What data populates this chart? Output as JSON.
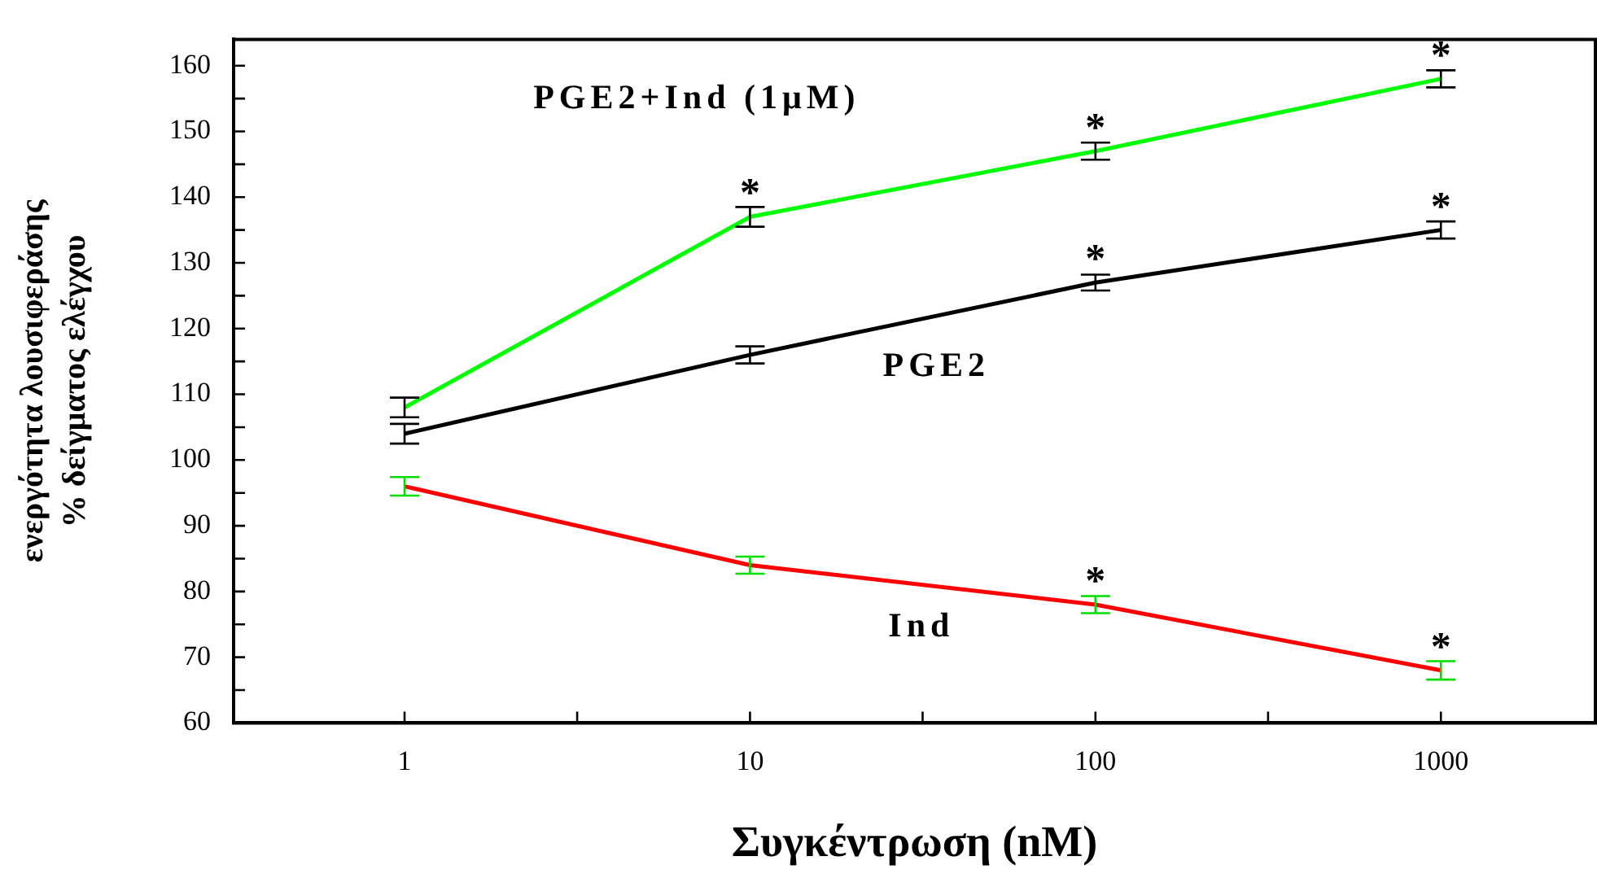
{
  "chart_data": {
    "type": "line",
    "xlabel": "Συγκέντρωση (nM)",
    "ylabel": "ενεργότητα λουσιφεράσης\n% δείγματος ελέγχου",
    "x": [
      1,
      10,
      100,
      1000
    ],
    "log": "x",
    "xlim": [
      0.32,
      2800
    ],
    "xticks": [
      1,
      {
        "value": 3.16,
        "label": null
      },
      10,
      {
        "value": 31.6,
        "label": null
      },
      100,
      {
        "value": 316,
        "label": null
      },
      1000
    ],
    "ylim": [
      60,
      164
    ],
    "yticks": [
      60,
      {
        "value": 65,
        "label": null
      },
      70,
      {
        "value": 75,
        "label": null
      },
      80,
      {
        "value": 85,
        "label": null
      },
      90,
      {
        "value": 95,
        "label": null
      },
      100,
      {
        "value": 105,
        "label": null
      },
      110,
      {
        "value": 115,
        "label": null
      },
      120,
      {
        "value": 125,
        "label": null
      },
      130,
      {
        "value": 135,
        "label": null
      },
      140,
      {
        "value": 145,
        "label": null
      },
      150,
      {
        "value": 155,
        "label": null
      },
      160
    ],
    "grid": false,
    "legend": false,
    "line_style": "solid",
    "series": [
      {
        "name": "PGE2+Ind (1μM)",
        "color": "#00ff00",
        "values": [
          108,
          137,
          147,
          158
        ],
        "errors": [
          1.5,
          1.5,
          1.3,
          1.3
        ]
      },
      {
        "name": "PGE2",
        "color": "#000000",
        "values": [
          104,
          116,
          127,
          135
        ],
        "errors": [
          1.5,
          1.3,
          1.2,
          1.3
        ]
      },
      {
        "name": "Ind",
        "color": "#ff0000",
        "values": [
          96,
          84,
          78,
          68
        ],
        "errors": [
          1.4,
          1.3,
          1.3,
          1.4
        ]
      }
    ],
    "annotations": [
      {
        "text": "*",
        "x": 10,
        "y": 137
      },
      {
        "text": "*",
        "x": 100,
        "y": 147
      },
      {
        "text": "*",
        "x": 1000,
        "y": 158
      },
      {
        "text": "*",
        "x": 100,
        "y": 127
      },
      {
        "text": "*",
        "x": 1000,
        "y": 135
      },
      {
        "text": "*",
        "x": 100,
        "y": 78
      },
      {
        "text": "*",
        "x": 1000,
        "y": 68
      }
    ]
  }
}
